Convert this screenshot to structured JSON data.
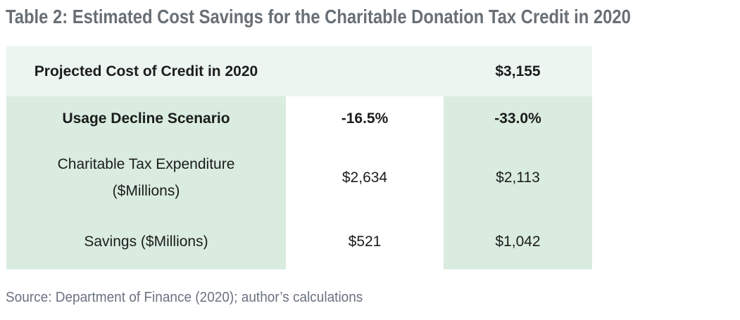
{
  "title": "Table 2: Estimated Cost Savings for the Charitable Donation Tax Credit in 2020",
  "colors": {
    "header_row_bg": "#ecf5f0",
    "column_bg": "#d9ecdf",
    "title_color": "#686f75",
    "body_text_color": "#1c1c1c",
    "source_color": "#6b7280"
  },
  "table": {
    "header_row": {
      "label": "Projected Cost of Credit in 2020",
      "value": "$3,155"
    },
    "rows": [
      {
        "label": "Usage Decline Scenario",
        "col1": "-16.5%",
        "col2": "-33.0%"
      },
      {
        "label": "Charitable Tax Expenditure ($Millions)",
        "col1": "$2,634",
        "col2": "$2,113"
      },
      {
        "label": "Savings ($Millions)",
        "col1": "$521",
        "col2": "$1,042"
      }
    ]
  },
  "source": "Source: Department of Finance (2020); author’s calculations"
}
